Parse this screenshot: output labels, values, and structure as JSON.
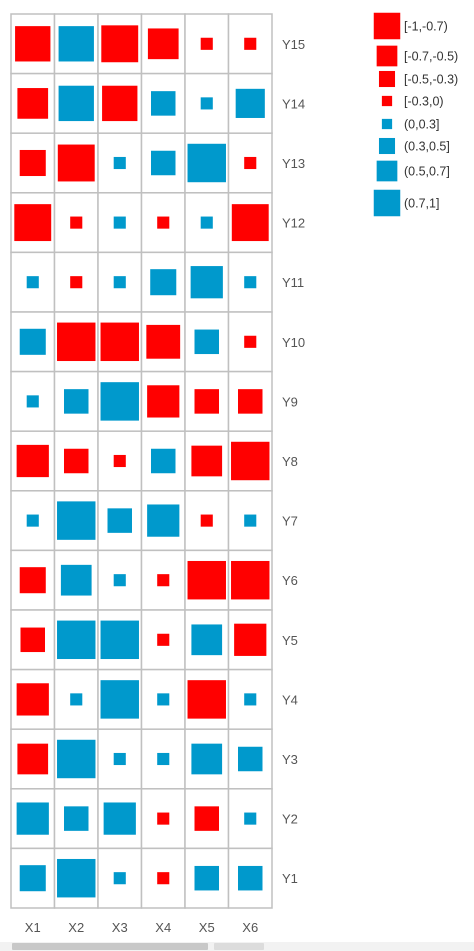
{
  "chart_data": {
    "type": "heatmap",
    "title": "",
    "x_labels": [
      "X1",
      "X2",
      "X3",
      "X4",
      "X5",
      "X6"
    ],
    "y_labels": [
      "Y15",
      "Y14",
      "Y13",
      "Y12",
      "Y11",
      "Y10",
      "Y9",
      "Y8",
      "Y7",
      "Y6",
      "Y5",
      "Y4",
      "Y3",
      "Y2",
      "Y1"
    ],
    "values": [
      [
        -0.85,
        0.85,
        -0.9,
        -0.7,
        -0.1,
        -0.1
      ],
      [
        -0.7,
        0.85,
        -0.85,
        0.5,
        0.1,
        0.65
      ],
      [
        -0.55,
        -0.9,
        0.1,
        0.5,
        0.95,
        -0.1
      ],
      [
        -0.9,
        -0.1,
        0.1,
        -0.1,
        0.1,
        -0.9
      ],
      [
        0.1,
        -0.1,
        0.1,
        0.55,
        0.75,
        0.1
      ],
      [
        0.55,
        -0.95,
        -0.95,
        -0.8,
        0.5,
        -0.1
      ],
      [
        0.1,
        0.5,
        0.95,
        -0.75,
        -0.5,
        -0.5
      ],
      [
        -0.75,
        -0.5,
        -0.1,
        0.5,
        -0.7,
        -0.95
      ],
      [
        0.1,
        0.95,
        0.5,
        0.75,
        -0.1,
        0.1
      ],
      [
        -0.55,
        0.7,
        0.1,
        -0.1,
        -0.95,
        -0.95
      ],
      [
        -0.5,
        0.95,
        0.95,
        -0.1,
        0.7,
        -0.75
      ],
      [
        -0.75,
        0.1,
        0.95,
        0.1,
        -0.95,
        0.1
      ],
      [
        -0.7,
        0.95,
        0.1,
        0.1,
        0.7,
        0.5
      ],
      [
        0.75,
        0.5,
        0.75,
        -0.1,
        -0.5,
        0.1
      ],
      [
        0.55,
        0.95,
        0.1,
        -0.1,
        0.5,
        0.5
      ]
    ],
    "legend": [
      {
        "label": "[-1,-0.7)",
        "level": -0.85
      },
      {
        "label": "[-0.7,-0.5)",
        "level": -0.6
      },
      {
        "label": "[-0.5,-0.3)",
        "level": -0.4
      },
      {
        "label": "[-0.3,0)",
        "level": -0.15
      },
      {
        "label": "(0,0.3]",
        "level": 0.15
      },
      {
        "label": "(0.3,0.5]",
        "level": 0.4
      },
      {
        "label": "(0.5,0.7]",
        "level": 0.6
      },
      {
        "label": "(0.7,1]",
        "level": 0.85
      }
    ],
    "colors": {
      "negative": "#ff0000",
      "positive": "#0099cc",
      "grid": "#c0c0c0"
    },
    "legend_placement": "top-right",
    "grid": true
  }
}
